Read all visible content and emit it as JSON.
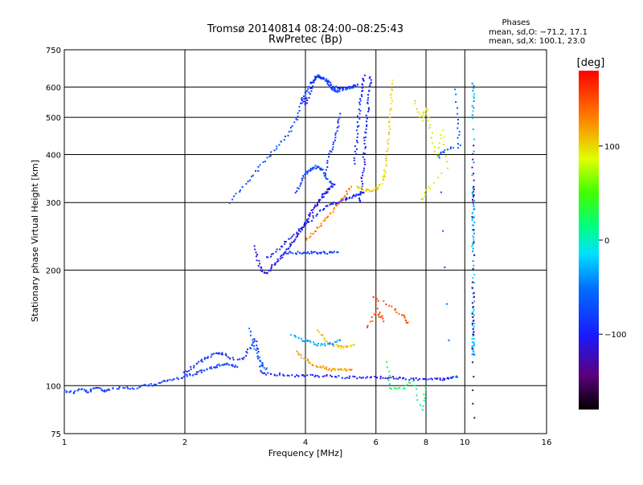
{
  "chart_data": {
    "type": "scatter",
    "title": "Tromsø 20140814 08:24:00–08:25:43",
    "subtitle": "RwPretec (Bp)",
    "xlabel": "Frequency [MHz]",
    "ylabel": "Stationary phase Virtual Height [km]",
    "x_scale": "log",
    "y_scale": "log",
    "xlim": [
      1,
      16
    ],
    "ylim": [
      75,
      750
    ],
    "x_ticks": [
      1,
      2,
      4,
      6,
      8,
      10,
      16
    ],
    "x_tick_labels": [
      "1",
      "2",
      "4",
      "6",
      "8",
      "10",
      "16"
    ],
    "y_ticks": [
      75,
      100,
      200,
      300,
      400,
      500,
      600,
      750
    ],
    "y_tick_labels": [
      "75",
      "100",
      "200",
      "300",
      "400",
      "500",
      "600",
      "750"
    ],
    "grid": true,
    "stats": {
      "heading": "Phases",
      "line_o": "mean, sd,O: −71.2, 17.1",
      "line_x": "mean, sd,X: 100.1, 23.0"
    },
    "colorbar": {
      "label": "[deg]",
      "range": [
        -180,
        180
      ],
      "ticks": [
        100,
        0,
        -100
      ],
      "tick_labels": [
        "100",
        "0",
        "−100"
      ]
    },
    "series": [
      {
        "tag": "low-e",
        "phase": -80,
        "points": [
          [
            1.0,
            97
          ],
          [
            1.05,
            96
          ],
          [
            1.1,
            98
          ],
          [
            1.15,
            96
          ],
          [
            1.2,
            99
          ],
          [
            1.25,
            97
          ],
          [
            1.3,
            98
          ],
          [
            1.4,
            99
          ],
          [
            1.5,
            98
          ],
          [
            1.6,
            100
          ],
          [
            1.7,
            101
          ],
          [
            1.8,
            103
          ],
          [
            1.9,
            104
          ],
          [
            2.0,
            106
          ],
          [
            2.1,
            107
          ],
          [
            2.2,
            109
          ],
          [
            2.3,
            111
          ],
          [
            2.4,
            112
          ],
          [
            2.5,
            114
          ],
          [
            2.6,
            113
          ],
          [
            2.7,
            112
          ]
        ]
      },
      {
        "tag": "low-e-ramp",
        "phase": -85,
        "points": [
          [
            2.0,
            108
          ],
          [
            2.1,
            112
          ],
          [
            2.2,
            116
          ],
          [
            2.3,
            119
          ],
          [
            2.4,
            122
          ],
          [
            2.5,
            121
          ],
          [
            2.6,
            118
          ],
          [
            2.8,
            117
          ],
          [
            2.9,
            125
          ],
          [
            3.0,
            132
          ],
          [
            3.05,
            120
          ],
          [
            3.1,
            110
          ]
        ]
      },
      {
        "tag": "e-trace",
        "phase": -100,
        "points": [
          [
            3.1,
            108
          ],
          [
            3.3,
            107
          ],
          [
            3.5,
            107
          ],
          [
            3.8,
            106
          ],
          [
            4.0,
            106
          ],
          [
            4.3,
            106
          ],
          [
            4.6,
            106
          ],
          [
            5.0,
            105
          ],
          [
            5.4,
            105
          ],
          [
            5.8,
            105
          ],
          [
            6.2,
            105
          ],
          [
            6.6,
            105
          ],
          [
            7.0,
            104
          ],
          [
            7.5,
            104
          ],
          [
            8.0,
            104
          ],
          [
            8.5,
            104
          ],
          [
            8.9,
            104
          ],
          [
            9.3,
            105
          ]
        ]
      },
      {
        "tag": "f-low",
        "phase": -105,
        "points": [
          [
            3.0,
            230
          ],
          [
            3.05,
            210
          ],
          [
            3.1,
            200
          ],
          [
            3.2,
            196
          ],
          [
            3.3,
            204
          ],
          [
            3.4,
            210
          ],
          [
            3.5,
            218
          ],
          [
            3.6,
            226
          ],
          [
            3.7,
            235
          ],
          [
            3.8,
            245
          ],
          [
            3.9,
            255
          ],
          [
            4.0,
            265
          ],
          [
            4.1,
            278
          ],
          [
            4.2,
            290
          ],
          [
            4.3,
            300
          ],
          [
            4.4,
            310
          ],
          [
            4.5,
            318
          ],
          [
            4.6,
            326
          ],
          [
            4.7,
            333
          ]
        ]
      },
      {
        "tag": "f-low-2",
        "phase": -95,
        "points": [
          [
            3.2,
            215
          ],
          [
            3.4,
            225
          ],
          [
            3.6,
            238
          ],
          [
            3.8,
            250
          ],
          [
            4.0,
            262
          ],
          [
            4.2,
            275
          ],
          [
            4.4,
            288
          ],
          [
            4.6,
            296
          ],
          [
            4.8,
            300
          ],
          [
            5.0,
            305
          ],
          [
            5.2,
            310
          ],
          [
            5.4,
            315
          ],
          [
            5.6,
            320
          ]
        ]
      },
      {
        "tag": "f-band",
        "phase": -80,
        "points": [
          [
            3.6,
            222
          ],
          [
            3.8,
            222
          ],
          [
            4.0,
            222
          ],
          [
            4.2,
            222
          ],
          [
            4.4,
            222
          ],
          [
            4.6,
            222
          ],
          [
            4.8,
            222
          ]
        ]
      },
      {
        "tag": "f-upper-a",
        "phase": -70,
        "points": [
          [
            2.6,
            300
          ],
          [
            2.8,
            330
          ],
          [
            3.0,
            360
          ],
          [
            3.2,
            390
          ],
          [
            3.4,
            420
          ],
          [
            3.6,
            450
          ],
          [
            3.8,
            490
          ],
          [
            3.9,
            540
          ],
          [
            4.0,
            580
          ],
          [
            4.1,
            610
          ],
          [
            4.2,
            630
          ],
          [
            4.3,
            640
          ],
          [
            4.4,
            635
          ],
          [
            4.5,
            625
          ],
          [
            4.6,
            605
          ],
          [
            4.7,
            590
          ],
          [
            4.8,
            585
          ],
          [
            5.0,
            590
          ],
          [
            5.2,
            600
          ],
          [
            5.4,
            605
          ]
        ]
      },
      {
        "tag": "f-upper-b",
        "phase": -90,
        "points": [
          [
            3.9,
            560
          ],
          [
            4.0,
            540
          ],
          [
            4.1,
            580
          ],
          [
            4.2,
            620
          ],
          [
            4.3,
            638
          ],
          [
            4.5,
            630
          ],
          [
            4.7,
            600
          ],
          [
            4.9,
            592
          ],
          [
            5.1,
            596
          ],
          [
            5.3,
            604
          ]
        ]
      },
      {
        "tag": "f-upper-c",
        "phase": -75,
        "points": [
          [
            3.8,
            320
          ],
          [
            3.9,
            340
          ],
          [
            4.0,
            355
          ],
          [
            4.1,
            365
          ],
          [
            4.2,
            370
          ],
          [
            4.3,
            372
          ],
          [
            4.4,
            365
          ],
          [
            4.5,
            352
          ],
          [
            4.6,
            340
          ],
          [
            4.7,
            330
          ]
        ]
      },
      {
        "tag": "f-vertical",
        "phase": -95,
        "points": [
          [
            5.45,
            300
          ],
          [
            5.5,
            320
          ],
          [
            5.55,
            350
          ],
          [
            5.6,
            380
          ],
          [
            5.62,
            420
          ],
          [
            5.65,
            460
          ],
          [
            5.7,
            500
          ],
          [
            5.75,
            550
          ],
          [
            5.8,
            600
          ],
          [
            5.82,
            640
          ]
        ]
      },
      {
        "tag": "f-vertical-2",
        "phase": -90,
        "points": [
          [
            5.3,
            380
          ],
          [
            5.35,
            420
          ],
          [
            5.4,
            470
          ],
          [
            5.45,
            520
          ],
          [
            5.5,
            570
          ],
          [
            5.55,
            610
          ],
          [
            5.6,
            640
          ]
        ]
      },
      {
        "tag": "f-mid-a",
        "phase": -85,
        "points": [
          [
            4.5,
            360
          ],
          [
            4.6,
            400
          ],
          [
            4.7,
            430
          ],
          [
            4.8,
            470
          ],
          [
            4.9,
            510
          ]
        ]
      },
      {
        "tag": "x-orange",
        "phase": 130,
        "points": [
          [
            4.0,
            240
          ],
          [
            4.2,
            252
          ],
          [
            4.4,
            265
          ],
          [
            4.6,
            280
          ],
          [
            4.8,
            296
          ],
          [
            5.0,
            312
          ],
          [
            5.2,
            328
          ]
        ]
      },
      {
        "tag": "x-yellow",
        "phase": 100,
        "points": [
          [
            5.4,
            330
          ],
          [
            5.6,
            324
          ],
          [
            5.8,
            322
          ],
          [
            6.0,
            326
          ],
          [
            6.2,
            338
          ],
          [
            6.3,
            360
          ],
          [
            6.4,
            400
          ],
          [
            6.45,
            450
          ],
          [
            6.5,
            500
          ],
          [
            6.55,
            560
          ],
          [
            6.6,
            620
          ]
        ]
      },
      {
        "tag": "x-e-orange",
        "phase": 120,
        "points": [
          [
            3.8,
            122
          ],
          [
            4.0,
            117
          ],
          [
            4.2,
            113
          ],
          [
            4.4,
            112
          ],
          [
            4.6,
            110
          ],
          [
            4.8,
            110
          ],
          [
            5.0,
            110
          ],
          [
            5.2,
            110
          ]
        ]
      },
      {
        "tag": "x-e-upper",
        "phase": 110,
        "points": [
          [
            4.3,
            140
          ],
          [
            4.5,
            130
          ],
          [
            4.7,
            128
          ],
          [
            4.9,
            126
          ],
          [
            5.1,
            126
          ],
          [
            5.3,
            128
          ]
        ]
      },
      {
        "tag": "e-cyan",
        "phase": -35,
        "points": [
          [
            3.7,
            135
          ],
          [
            3.9,
            132
          ],
          [
            4.1,
            130
          ],
          [
            4.3,
            128
          ],
          [
            4.5,
            128
          ],
          [
            4.7,
            129
          ],
          [
            4.9,
            131
          ]
        ]
      },
      {
        "tag": "e-mid",
        "phase": -55,
        "points": [
          [
            2.9,
            140
          ],
          [
            3.0,
            125
          ],
          [
            3.1,
            115
          ],
          [
            3.2,
            110
          ]
        ]
      },
      {
        "tag": "x-red-dots",
        "phase": 150,
        "points": [
          [
            5.7,
            142
          ],
          [
            6.0,
            155
          ],
          [
            6.3,
            148
          ],
          [
            5.9,
            170
          ],
          [
            6.6,
            160
          ],
          [
            7.0,
            152
          ],
          [
            7.2,
            145
          ]
        ]
      },
      {
        "tag": "x-yellow-dots",
        "phase": 90,
        "points": [
          [
            7.5,
            550
          ],
          [
            7.8,
            490
          ],
          [
            8.0,
            530
          ],
          [
            8.2,
            470
          ],
          [
            8.5,
            395
          ],
          [
            8.8,
            460
          ],
          [
            9.0,
            370
          ],
          [
            7.8,
            305
          ],
          [
            8.1,
            330
          ]
        ]
      },
      {
        "tag": "scatter-10.5",
        "phase": -30,
        "points": [
          [
            10.5,
            610
          ],
          [
            10.5,
            560
          ],
          [
            10.5,
            500
          ],
          [
            10.5,
            330
          ],
          [
            10.5,
            300
          ],
          [
            10.5,
            280
          ],
          [
            10.5,
            260
          ],
          [
            10.5,
            240
          ],
          [
            10.5,
            225
          ],
          [
            10.5,
            190
          ],
          [
            10.5,
            160
          ],
          [
            10.5,
            150
          ],
          [
            10.5,
            140
          ],
          [
            10.5,
            130
          ],
          [
            10.5,
            125
          ],
          [
            10.5,
            120
          ]
        ]
      },
      {
        "tag": "scatter-10.5-dark",
        "phase": -140,
        "points": [
          [
            10.5,
            420
          ],
          [
            10.5,
            330
          ],
          [
            10.5,
            300
          ],
          [
            10.5,
            185
          ],
          [
            10.5,
            155
          ],
          [
            10.5,
            135
          ],
          [
            10.5,
            82
          ]
        ]
      },
      {
        "tag": "scatter-9-10",
        "phase": -60,
        "points": [
          [
            9.5,
            590
          ],
          [
            9.6,
            480
          ],
          [
            9.7,
            420
          ],
          [
            8.9,
            410
          ],
          [
            8.6,
            395
          ],
          [
            9.2,
            105
          ],
          [
            9.6,
            106
          ]
        ]
      },
      {
        "tag": "scatter-misc",
        "phase": 20,
        "points": [
          [
            6.4,
            115
          ],
          [
            6.5,
            98
          ],
          [
            7.0,
            98
          ],
          [
            7.4,
            103
          ],
          [
            7.8,
            87
          ],
          [
            8.0,
            99
          ]
        ]
      }
    ]
  }
}
